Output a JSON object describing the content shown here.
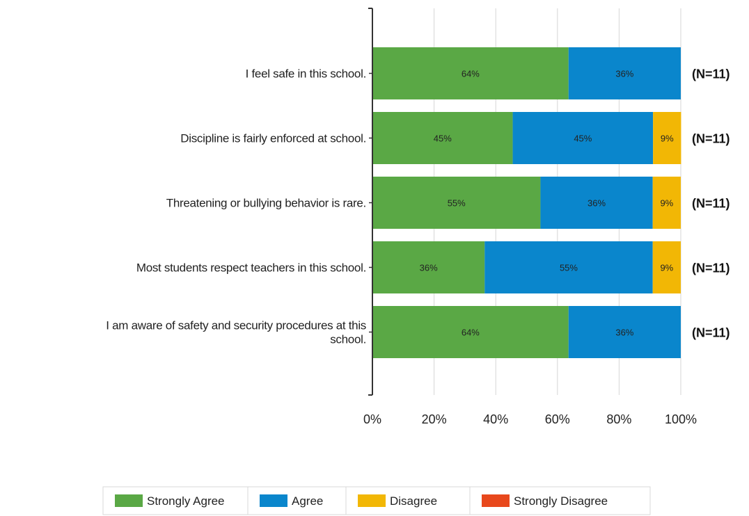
{
  "chart_data": {
    "type": "bar",
    "orientation": "horizontal",
    "stacked": true,
    "categories": [
      "I feel safe in this school.",
      "Discipline is fairly enforced at school.",
      "Threatening or bullying behavior is rare.",
      "Most students respect teachers in this school.",
      "I am aware of safety and security procedures at this school."
    ],
    "category_lines": [
      [
        "I feel safe in this school."
      ],
      [
        "Discipline is fairly enforced at school."
      ],
      [
        "Threatening or bullying behavior is rare."
      ],
      [
        "Most students respect teachers in this school."
      ],
      [
        "I am aware of safety and security procedures at this",
        "school."
      ]
    ],
    "series": [
      {
        "name": "Strongly Agree",
        "color": "#5aa845",
        "values": [
          63.6,
          45.5,
          54.5,
          36.4,
          63.6
        ],
        "labels": [
          "64%",
          "45%",
          "55%",
          "36%",
          "64%"
        ]
      },
      {
        "name": "Agree",
        "color": "#0a86cc",
        "values": [
          36.4,
          45.5,
          36.4,
          54.5,
          36.4
        ],
        "labels": [
          "36%",
          "45%",
          "36%",
          "55%",
          "36%"
        ]
      },
      {
        "name": "Disagree",
        "color": "#f2b705",
        "values": [
          0,
          9.1,
          9.1,
          9.1,
          0
        ],
        "labels": [
          "",
          "9%",
          "9%",
          "9%",
          ""
        ]
      },
      {
        "name": "Strongly Disagree",
        "color": "#e8481c",
        "values": [
          0,
          0,
          0,
          0,
          0
        ],
        "labels": [
          "",
          "",
          "",
          "",
          ""
        ]
      }
    ],
    "n_labels": [
      "(N=11)",
      "(N=11)",
      "(N=11)",
      "(N=11)",
      "(N=11)"
    ],
    "xlim": [
      0,
      100
    ],
    "xticks": [
      0,
      20,
      40,
      60,
      80,
      100
    ],
    "xtick_labels": [
      "0%",
      "20%",
      "40%",
      "60%",
      "80%",
      "100%"
    ],
    "grid": true,
    "legend_position": "bottom"
  }
}
